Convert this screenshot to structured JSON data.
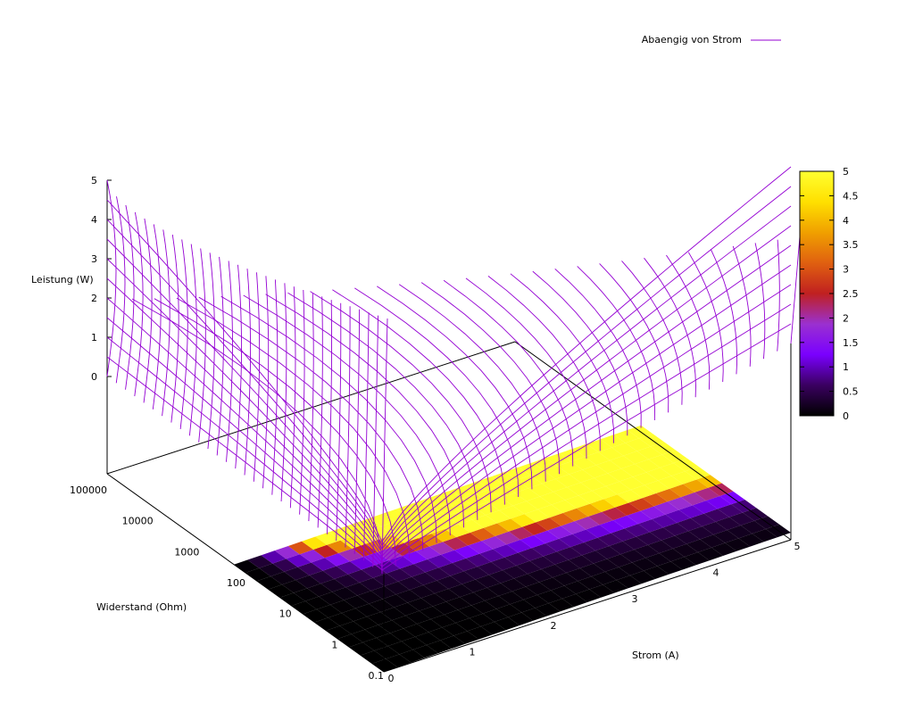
{
  "chart_data": {
    "type": "surface3d",
    "title": "",
    "xlabel": "Strom (A)",
    "ylabel": "Widerstand (Ohm)",
    "zlabel": "Leistung (W)",
    "xlim": [
      0,
      5
    ],
    "ylim": [
      0.1,
      100000
    ],
    "zlim": [
      0,
      5
    ],
    "y_log_scale": true,
    "x_ticks": [
      "0",
      "1",
      "2",
      "3",
      "4",
      "5"
    ],
    "y_ticks": [
      "0.1",
      "1",
      "10",
      "100",
      "1000",
      "10000",
      "100000"
    ],
    "z_ticks": [
      "0",
      "1",
      "2",
      "3",
      "4",
      "5"
    ],
    "colorbar": {
      "min": 0,
      "max": 5,
      "ticks": [
        "0",
        "0.5",
        "1",
        "1.5",
        "2",
        "2.5",
        "3",
        "3.5",
        "4",
        "4.5",
        "5"
      ],
      "palette": [
        "#000000",
        "#3a0060",
        "#7a00ff",
        "#9a30d0",
        "#c02020",
        "#e06010",
        "#f0a000",
        "#ffe000",
        "#ffff30"
      ]
    },
    "series": [
      {
        "name": "Abaengig von Strom",
        "color": "#9400d3",
        "style": "mesh",
        "function": "z = x^2 * y",
        "x_samples": 30,
        "y_samples": 10
      }
    ],
    "projection_pm3d": true,
    "legend_position": "top-right"
  }
}
